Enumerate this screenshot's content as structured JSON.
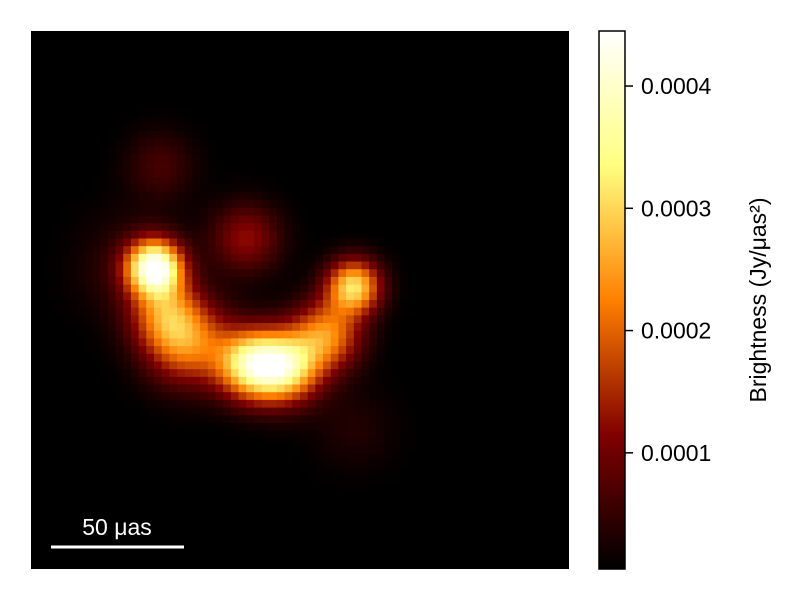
{
  "chart_data": {
    "type": "heatmap",
    "title": "",
    "image": {
      "description_of_features": "bright ring-like structure with a dark central depression",
      "grid": "none",
      "blobs": [
        {
          "x": -0.54,
          "y": -0.12,
          "sigma": 0.07,
          "amp": 0.000425
        },
        {
          "x": -0.5,
          "y": 0.05,
          "sigma": 0.09,
          "amp": 0.00016
        },
        {
          "x": -0.42,
          "y": 0.16,
          "sigma": 0.11,
          "amp": 0.00021
        },
        {
          "x": -0.18,
          "y": 0.24,
          "sigma": 0.09,
          "amp": 0.00032
        },
        {
          "x": -0.05,
          "y": 0.25,
          "sigma": 0.09,
          "amp": 0.0003
        },
        {
          "x": 0.1,
          "y": 0.13,
          "sigma": 0.09,
          "amp": 0.00022
        },
        {
          "x": 0.2,
          "y": -0.05,
          "sigma": 0.07,
          "amp": 0.0003
        },
        {
          "x": -0.2,
          "y": -0.23,
          "sigma": 0.09,
          "amp": 0.00012
        },
        {
          "x": -0.52,
          "y": -0.5,
          "sigma": 0.09,
          "amp": 6e-05
        },
        {
          "x": -0.62,
          "y": -0.12,
          "sigma": 0.14,
          "amp": 5e-05
        },
        {
          "x": 0.2,
          "y": 0.48,
          "sigma": 0.11,
          "amp": 3e-05
        }
      ],
      "background": 3e-06
    },
    "colorbar": {
      "label": "Brightness (Jy/μas²)",
      "min": 5e-06,
      "max": 0.000445,
      "ticks": [
        {
          "value": 0.0001,
          "label": "0.0001"
        },
        {
          "value": 0.0002,
          "label": "0.0002"
        },
        {
          "value": 0.0003,
          "label": "0.0003"
        },
        {
          "value": 0.0004,
          "label": "0.0004"
        }
      ],
      "colormap": "afmhot",
      "colormap_stops": [
        "#000000",
        "#800000",
        "#ff8000",
        "#ffff80",
        "#ffffff"
      ]
    },
    "scalebar": {
      "label": "50 μas",
      "color": "#ffffff"
    }
  }
}
